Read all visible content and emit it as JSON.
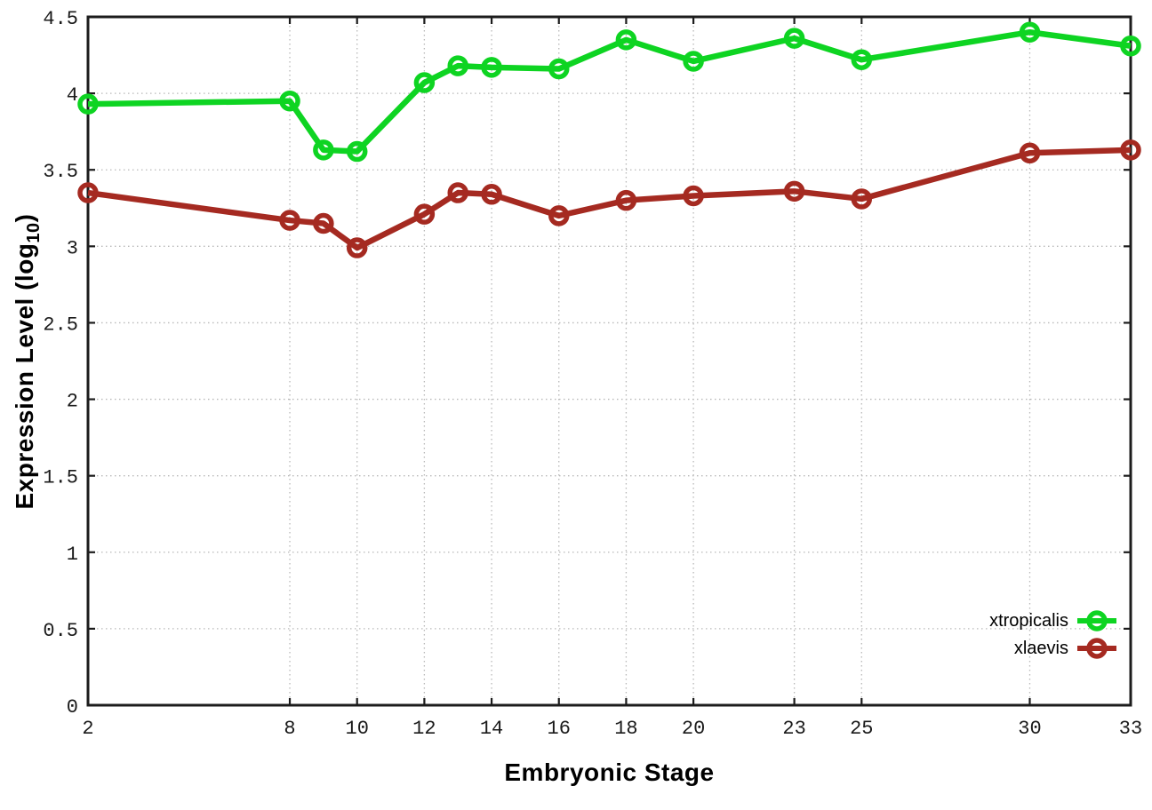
{
  "figure": {
    "background": "#ffffff"
  },
  "chart_data": {
    "type": "line",
    "title": "",
    "xlabel": "Embryonic Stage",
    "ylabel": "Expression Level (log10)",
    "ylabel_parts": {
      "prefix": "Expression Level (log",
      "sub": "10",
      "suffix": ")"
    },
    "xlim": [
      2,
      33
    ],
    "ylim": [
      0,
      4.5
    ],
    "x_ticks": [
      2,
      8,
      10,
      12,
      14,
      16,
      18,
      20,
      23,
      25,
      30,
      33
    ],
    "y_ticks": [
      0,
      0.5,
      1,
      1.5,
      2,
      2.5,
      3,
      3.5,
      4,
      4.5
    ],
    "grid": true,
    "legend_position": "bottom-right",
    "x": [
      2,
      8,
      9,
      10,
      12,
      13,
      14,
      16,
      18,
      20,
      23,
      25,
      30,
      33
    ],
    "series": [
      {
        "name": "xtropicalis",
        "color": "#0ed422",
        "values": [
          3.93,
          3.95,
          3.63,
          3.62,
          4.07,
          4.18,
          4.17,
          4.16,
          4.35,
          4.21,
          4.36,
          4.22,
          4.4,
          4.31
        ]
      },
      {
        "name": "xlaevis",
        "color": "#a52a21",
        "values": [
          3.35,
          3.17,
          3.15,
          2.99,
          3.21,
          3.35,
          3.34,
          3.2,
          3.3,
          3.33,
          3.36,
          3.31,
          3.61,
          3.63
        ]
      }
    ],
    "styles": {
      "grid_color": "#b8b8b8",
      "axis_color": "#1c1c1c",
      "tick_label_color": "#1a1a1a"
    }
  }
}
